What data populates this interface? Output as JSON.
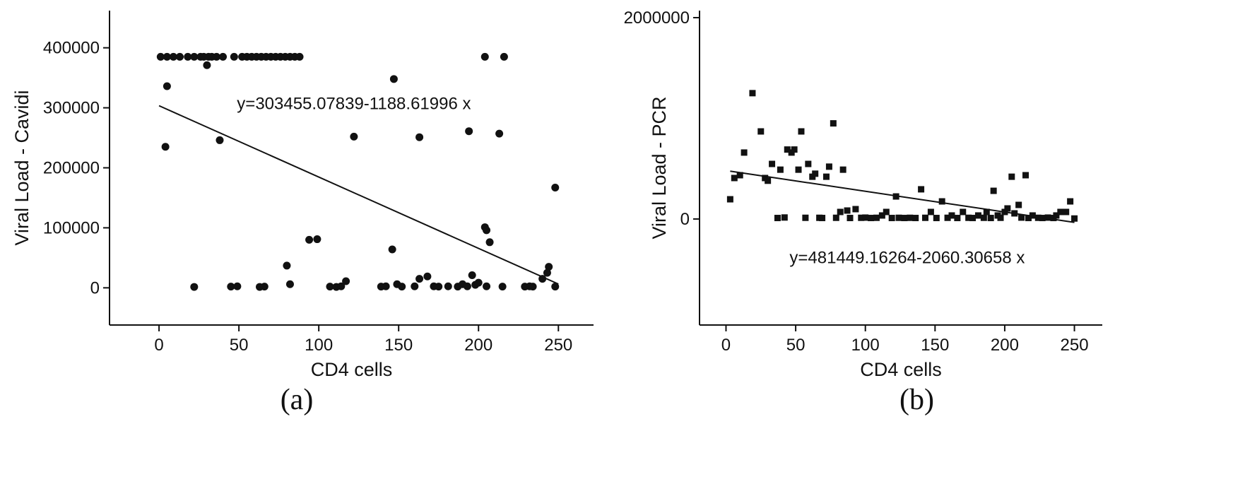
{
  "figure": {
    "background": "#ffffff",
    "ink_color": "#111111"
  },
  "chart_data": [
    {
      "type": "scatter",
      "panel_label": "(a)",
      "xlabel": "CD4 cells",
      "ylabel": "Viral Load - Cavidi",
      "xlim": [
        -31,
        272
      ],
      "ylim": [
        -62000,
        462000
      ],
      "xticks": [
        0,
        50,
        100,
        150,
        200,
        250
      ],
      "yticks": [
        0,
        100000,
        200000,
        300000,
        400000
      ],
      "marker": "circle",
      "grid": false,
      "fit_line": {
        "intercept": 303455.07839,
        "slope": -1188.61996,
        "x_start": 0,
        "x_end": 250
      },
      "annotation": {
        "text": "y=303455.07839-1188.61996 x",
        "x": 122,
        "y": 298000
      },
      "points": [
        [
          1,
          385000
        ],
        [
          5,
          385000
        ],
        [
          9,
          385000
        ],
        [
          13,
          385000
        ],
        [
          18,
          385000
        ],
        [
          22,
          385000
        ],
        [
          26,
          385000
        ],
        [
          28,
          385000
        ],
        [
          31,
          385000
        ],
        [
          33,
          385000
        ],
        [
          36,
          385000
        ],
        [
          40,
          385000
        ],
        [
          47,
          385000
        ],
        [
          52,
          385000
        ],
        [
          55,
          385000
        ],
        [
          58,
          385000
        ],
        [
          61,
          385000
        ],
        [
          64,
          385000
        ],
        [
          67,
          385000
        ],
        [
          70,
          385000
        ],
        [
          73,
          385000
        ],
        [
          76,
          385000
        ],
        [
          79,
          385000
        ],
        [
          82,
          385000
        ],
        [
          85,
          385000
        ],
        [
          88,
          385000
        ],
        [
          204,
          385000
        ],
        [
          216,
          385000
        ],
        [
          30,
          371000
        ],
        [
          5,
          336000
        ],
        [
          147,
          348000
        ],
        [
          4,
          235000
        ],
        [
          38,
          246000
        ],
        [
          122,
          252000
        ],
        [
          163,
          251000
        ],
        [
          194,
          261000
        ],
        [
          213,
          257000
        ],
        [
          248,
          167000
        ],
        [
          94,
          80000
        ],
        [
          99,
          81000
        ],
        [
          204,
          101000
        ],
        [
          205,
          96000
        ],
        [
          207,
          76000
        ],
        [
          146,
          64000
        ],
        [
          80,
          37000
        ],
        [
          244,
          35000
        ],
        [
          243,
          25000
        ],
        [
          240,
          15000
        ],
        [
          22,
          1500
        ],
        [
          45,
          2000
        ],
        [
          49,
          2500
        ],
        [
          63,
          1500
        ],
        [
          66,
          2000
        ],
        [
          82,
          6000
        ],
        [
          107,
          2000
        ],
        [
          111,
          1500
        ],
        [
          114,
          2500
        ],
        [
          117,
          11000
        ],
        [
          139,
          2000
        ],
        [
          142,
          2500
        ],
        [
          149,
          6000
        ],
        [
          152,
          2000
        ],
        [
          160,
          2500
        ],
        [
          163,
          15000
        ],
        [
          168,
          19000
        ],
        [
          172,
          2500
        ],
        [
          175,
          2000
        ],
        [
          181,
          2500
        ],
        [
          187,
          2000
        ],
        [
          190,
          6000
        ],
        [
          193,
          2500
        ],
        [
          196,
          21000
        ],
        [
          198,
          5000
        ],
        [
          200,
          8500
        ],
        [
          205,
          2500
        ],
        [
          215,
          2000
        ],
        [
          229,
          2000
        ],
        [
          232,
          2500
        ],
        [
          234,
          2000
        ],
        [
          248,
          2000
        ]
      ]
    },
    {
      "type": "scatter",
      "panel_label": "(b)",
      "xlabel": "CD4 cells",
      "ylabel": "Viral Load - PCR",
      "xlim": [
        -19,
        270
      ],
      "ylim": [
        -1053000,
        2070000
      ],
      "xticks": [
        0,
        50,
        100,
        150,
        200,
        250
      ],
      "yticks": [
        0,
        2000000
      ],
      "marker": "square",
      "grid": false,
      "fit_line": {
        "intercept": 481449.16264,
        "slope": -2060.30658,
        "x_start": 3,
        "x_end": 250
      },
      "annotation": {
        "text": "y=481449.16264-2060.30658 x",
        "x": 130,
        "y": -440000
      },
      "points": [
        [
          3,
          196000
        ],
        [
          6,
          407000
        ],
        [
          10,
          435000
        ],
        [
          13,
          660000
        ],
        [
          19,
          1250000
        ],
        [
          25,
          870000
        ],
        [
          28,
          407000
        ],
        [
          30,
          380000
        ],
        [
          33,
          547000
        ],
        [
          37,
          10000
        ],
        [
          39,
          490000
        ],
        [
          42,
          15000
        ],
        [
          44,
          690000
        ],
        [
          47,
          660000
        ],
        [
          49,
          690000
        ],
        [
          52,
          490000
        ],
        [
          54,
          870000
        ],
        [
          57,
          12000
        ],
        [
          59,
          547000
        ],
        [
          62,
          420000
        ],
        [
          64,
          450000
        ],
        [
          67,
          12000
        ],
        [
          69,
          10000
        ],
        [
          72,
          420000
        ],
        [
          74,
          520000
        ],
        [
          77,
          950000
        ],
        [
          79,
          12000
        ],
        [
          82,
          70000
        ],
        [
          84,
          490000
        ],
        [
          87,
          84000
        ],
        [
          89,
          10000
        ],
        [
          93,
          98000
        ],
        [
          97,
          12000
        ],
        [
          100,
          14000
        ],
        [
          104,
          10000
        ],
        [
          108,
          12000
        ],
        [
          112,
          35000
        ],
        [
          115,
          70000
        ],
        [
          119,
          10000
        ],
        [
          122,
          224000
        ],
        [
          124,
          12000
        ],
        [
          128,
          10000
        ],
        [
          132,
          12000
        ],
        [
          136,
          10000
        ],
        [
          140,
          295000
        ],
        [
          143,
          12000
        ],
        [
          147,
          70000
        ],
        [
          151,
          10000
        ],
        [
          155,
          175000
        ],
        [
          159,
          12000
        ],
        [
          162,
          35000
        ],
        [
          166,
          10000
        ],
        [
          170,
          70000
        ],
        [
          174,
          12000
        ],
        [
          177,
          10000
        ],
        [
          181,
          35000
        ],
        [
          185,
          12000
        ],
        [
          187,
          70000
        ],
        [
          190,
          10000
        ],
        [
          192,
          280000
        ],
        [
          195,
          35000
        ],
        [
          197,
          12000
        ],
        [
          200,
          70000
        ],
        [
          202,
          105000
        ],
        [
          205,
          420000
        ],
        [
          207,
          56000
        ],
        [
          210,
          140000
        ],
        [
          212,
          14000
        ],
        [
          215,
          435000
        ],
        [
          217,
          10000
        ],
        [
          220,
          35000
        ],
        [
          224,
          12000
        ],
        [
          227,
          10000
        ],
        [
          231,
          14000
        ],
        [
          235,
          10000
        ],
        [
          237,
          35000
        ],
        [
          240,
          70000
        ],
        [
          244,
          70000
        ],
        [
          247,
          175000
        ],
        [
          250,
          5000
        ]
      ]
    }
  ]
}
